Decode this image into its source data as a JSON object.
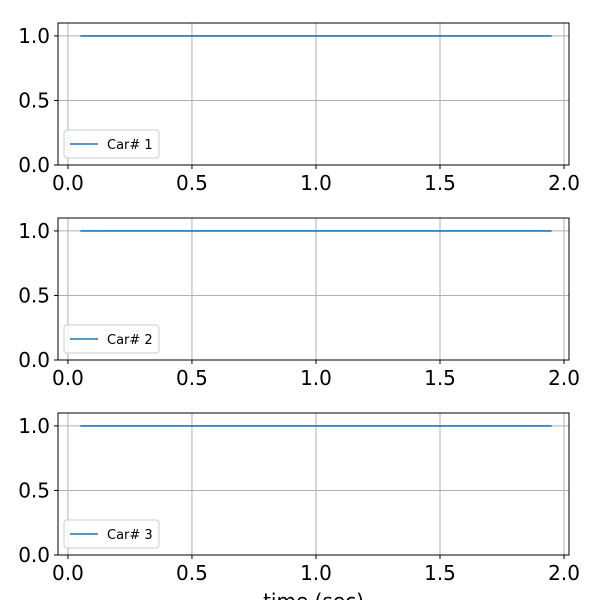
{
  "chart_data": {
    "type": "line",
    "xlabel": "time (sec)",
    "xlim": [
      -0.04,
      2.02
    ],
    "ylim": [
      0,
      1.1
    ],
    "xticks": [
      0.0,
      0.5,
      1.0,
      1.5,
      2.0
    ],
    "xtick_labels": [
      "0.0",
      "0.5",
      "1.0",
      "1.5",
      "2.0"
    ],
    "yticks": [
      0.0,
      0.5,
      1.0
    ],
    "ytick_labels": [
      "0.0",
      "0.5",
      "1.0"
    ],
    "grid": true,
    "legend_position": "lower-left",
    "line_color": "#1f77b4",
    "panels": [
      {
        "legend": "Car# 1",
        "series": [
          {
            "name": "Car# 1",
            "x": [
              0.05,
              1.95
            ],
            "y": [
              1.0,
              1.0
            ]
          }
        ]
      },
      {
        "legend": "Car# 2",
        "series": [
          {
            "name": "Car# 2",
            "x": [
              0.05,
              1.95
            ],
            "y": [
              1.0,
              1.0
            ]
          }
        ]
      },
      {
        "legend": "Car# 3",
        "series": [
          {
            "name": "Car# 3",
            "x": [
              0.05,
              1.95
            ],
            "y": [
              1.0,
              1.0
            ]
          }
        ]
      }
    ]
  }
}
